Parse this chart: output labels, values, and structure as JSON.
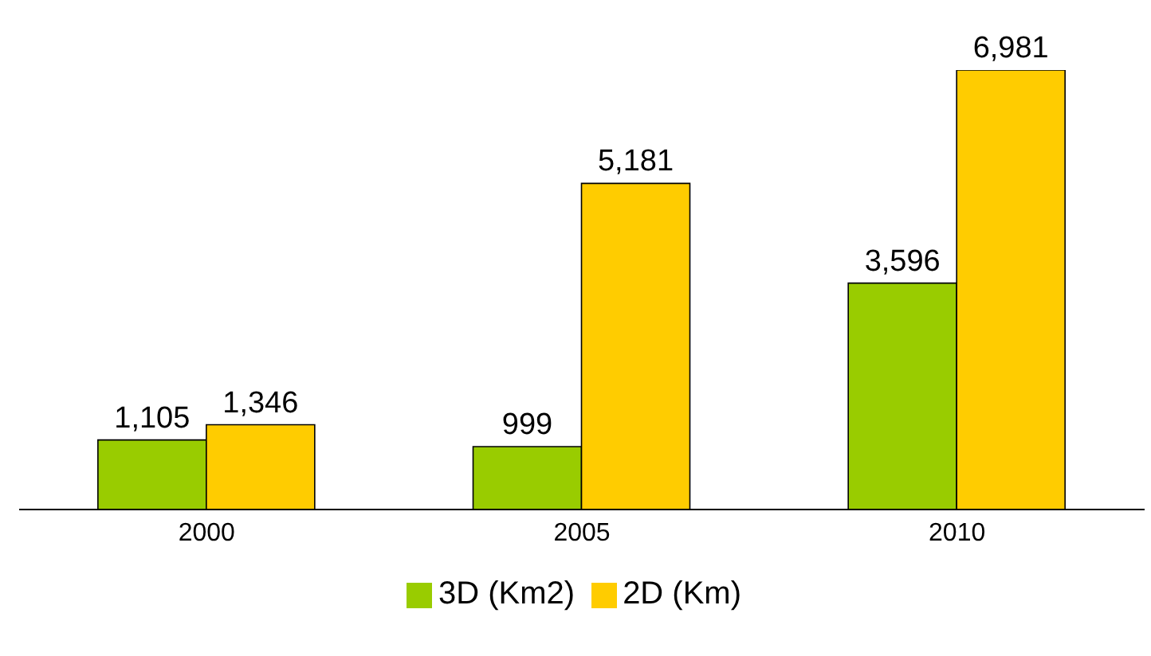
{
  "chart_data": {
    "type": "bar",
    "categories": [
      "2000",
      "2005",
      "2010"
    ],
    "series": [
      {
        "name": "3D (Km2)",
        "color": "#99cc00",
        "values": [
          1105,
          999,
          3596
        ],
        "value_labels": [
          "1,105",
          "999",
          "3,596"
        ]
      },
      {
        "name": "2D (Km)",
        "color": "#ffcc00",
        "values": [
          1346,
          5181,
          6981
        ],
        "value_labels": [
          "1,346",
          "5,181",
          "6,981"
        ]
      }
    ],
    "legend": "bottom",
    "grid": false
  }
}
